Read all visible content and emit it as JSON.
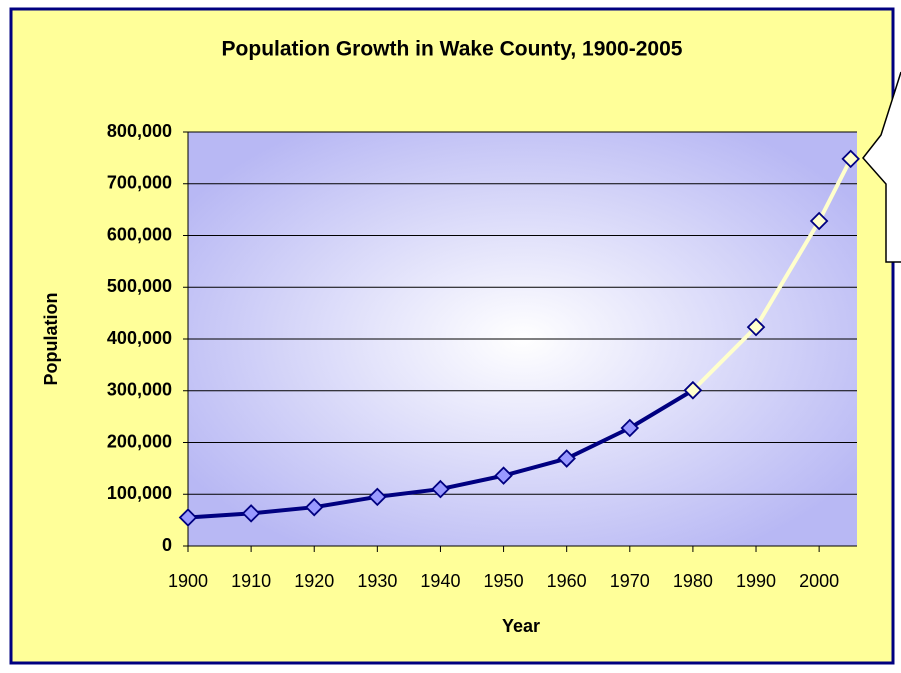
{
  "chart_data": {
    "type": "line",
    "title": "Population Growth in Wake County, 1900-2005",
    "xlabel": "Year",
    "ylabel": "Population",
    "x": [
      1900,
      1910,
      1920,
      1930,
      1940,
      1950,
      1960,
      1970,
      1980,
      1990,
      2000,
      2005
    ],
    "series": [
      {
        "color": "#000080",
        "marker_color": "#9999ff",
        "values": [
          55000,
          63000,
          75000,
          95000,
          110000,
          136000,
          169000,
          228000,
          301000,
          null,
          null,
          null
        ]
      },
      {
        "color": "#ffffcc",
        "marker_color": "#ffffcc",
        "values": [
          null,
          null,
          null,
          null,
          null,
          null,
          null,
          null,
          301000,
          423000,
          628000,
          748000
        ]
      }
    ],
    "xlim": [
      1900,
      2006
    ],
    "xticks": [
      1900,
      1910,
      1920,
      1930,
      1940,
      1950,
      1960,
      1970,
      1980,
      1990,
      2000
    ],
    "ylim": [
      0,
      800000
    ],
    "yticks": [
      0,
      {
        "value": 100000,
        "label": "100,000"
      },
      {
        "value": 200000,
        "label": "200,000"
      },
      {
        "value": 300000,
        "label": "300,000"
      },
      {
        "value": 400000,
        "label": "400,000"
      },
      {
        "value": 500000,
        "label": "500,000"
      },
      {
        "value": 600000,
        "label": "600,000"
      },
      {
        "value": 700000,
        "label": "700,000"
      },
      {
        "value": 800000,
        "label": "800,000"
      }
    ],
    "grid": true
  }
}
